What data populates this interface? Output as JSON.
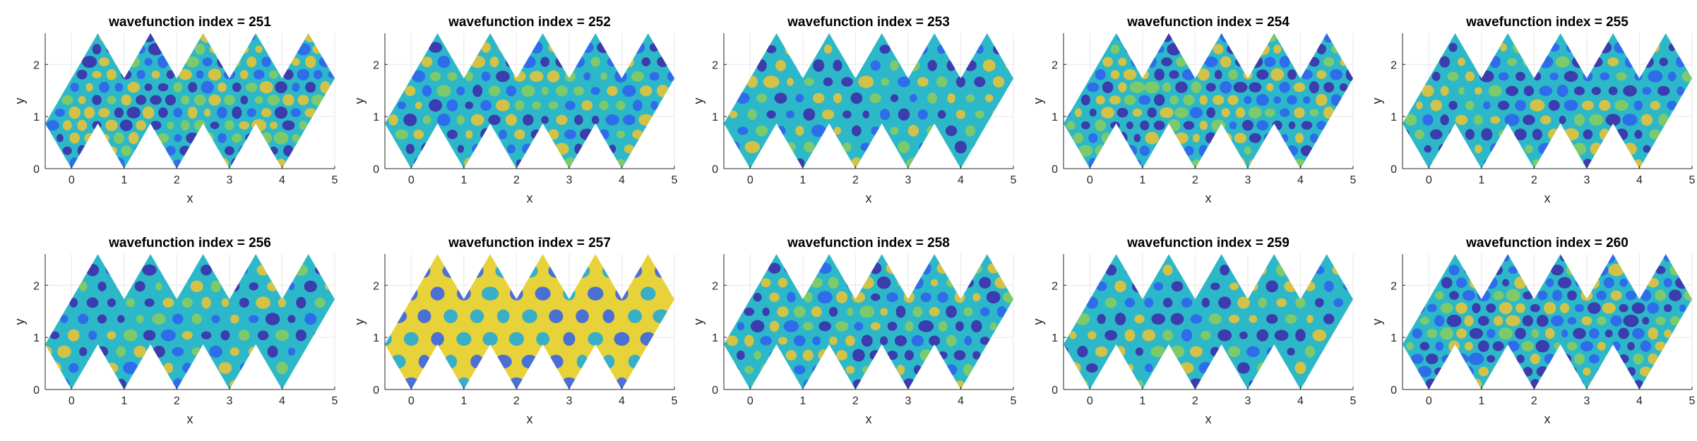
{
  "figure": {
    "layout": "2 rows x 5 columns",
    "colormap": [
      "#3e26a8",
      "#2f5ff0",
      "#1aa8e0",
      "#2bc0c0",
      "#8ccc5c",
      "#f0c330",
      "#f9f50f"
    ]
  },
  "chart_data": [
    {
      "type": "heatmap",
      "title": "wavefunction index = 251",
      "xlabel": "x",
      "ylabel": "y",
      "xlim": [
        -0.5,
        5
      ],
      "ylim": [
        0,
        2.6
      ],
      "xticks": [
        "0",
        "1",
        "2",
        "3",
        "4",
        "5"
      ],
      "yticks": [
        "0",
        "1",
        "2"
      ],
      "grid": true,
      "domain": "zigzag polygon",
      "pattern": "vertical-stripes"
    },
    {
      "type": "heatmap",
      "title": "wavefunction index = 252",
      "xlabel": "x",
      "ylabel": "y",
      "xlim": [
        -0.5,
        5
      ],
      "ylim": [
        0,
        2.6
      ],
      "xticks": [
        "0",
        "1",
        "2",
        "3",
        "4",
        "5"
      ],
      "yticks": [
        "0",
        "1",
        "2"
      ],
      "grid": true,
      "domain": "zigzag polygon",
      "pattern": "diagonal-waves"
    },
    {
      "type": "heatmap",
      "title": "wavefunction index = 253",
      "xlabel": "x",
      "ylabel": "y",
      "xlim": [
        -0.5,
        5
      ],
      "ylim": [
        0,
        2.6
      ],
      "xticks": [
        "0",
        "1",
        "2",
        "3",
        "4",
        "5"
      ],
      "yticks": [
        "0",
        "1",
        "2"
      ],
      "grid": true,
      "domain": "zigzag polygon",
      "pattern": "rotated-lattice"
    },
    {
      "type": "heatmap",
      "title": "wavefunction index = 254",
      "xlabel": "x",
      "ylabel": "y",
      "xlim": [
        -0.5,
        5
      ],
      "ylim": [
        0,
        2.6
      ],
      "xticks": [
        "0",
        "1",
        "2",
        "3",
        "4",
        "5"
      ],
      "yticks": [
        "0",
        "1",
        "2"
      ],
      "grid": true,
      "domain": "zigzag polygon",
      "pattern": "hex-lattice"
    },
    {
      "type": "heatmap",
      "title": "wavefunction index = 255",
      "xlabel": "x",
      "ylabel": "y",
      "xlim": [
        -0.5,
        5
      ],
      "ylim": [
        0,
        2.6
      ],
      "xticks": [
        "0",
        "1",
        "2",
        "3",
        "4",
        "5"
      ],
      "yticks": [
        "0",
        "1",
        "2"
      ],
      "grid": true,
      "domain": "zigzag polygon",
      "pattern": "checker-blobs"
    },
    {
      "type": "heatmap",
      "title": "wavefunction index = 256",
      "xlabel": "x",
      "ylabel": "y",
      "xlim": [
        -0.5,
        5
      ],
      "ylim": [
        0,
        2.6
      ],
      "xticks": [
        "0",
        "1",
        "2",
        "3",
        "4",
        "5"
      ],
      "yticks": [
        "0",
        "1",
        "2"
      ],
      "grid": true,
      "domain": "zigzag polygon",
      "pattern": "triangular-lattice"
    },
    {
      "type": "heatmap",
      "title": "wavefunction index = 257",
      "xlabel": "x",
      "ylabel": "y",
      "xlim": [
        -0.5,
        5
      ],
      "ylim": [
        0,
        2.6
      ],
      "xticks": [
        "0",
        "1",
        "2",
        "3",
        "4",
        "5"
      ],
      "yticks": [
        "0",
        "1",
        "2"
      ],
      "grid": true,
      "domain": "zigzag polygon",
      "pattern": "honeycomb-bright"
    },
    {
      "type": "heatmap",
      "title": "wavefunction index = 258",
      "xlabel": "x",
      "ylabel": "y",
      "xlim": [
        -0.5,
        5
      ],
      "ylim": [
        0,
        2.6
      ],
      "xticks": [
        "0",
        "1",
        "2",
        "3",
        "4",
        "5"
      ],
      "yticks": [
        "0",
        "1",
        "2"
      ],
      "grid": true,
      "domain": "zigzag polygon",
      "pattern": "dense-lattice"
    },
    {
      "type": "heatmap",
      "title": "wavefunction index = 259",
      "xlabel": "x",
      "ylabel": "y",
      "xlim": [
        -0.5,
        5
      ],
      "ylim": [
        0,
        2.6
      ],
      "xticks": [
        "0",
        "1",
        "2",
        "3",
        "4",
        "5"
      ],
      "yticks": [
        "0",
        "1",
        "2"
      ],
      "grid": true,
      "domain": "zigzag polygon",
      "pattern": "mixed-lattice"
    },
    {
      "type": "heatmap",
      "title": "wavefunction index = 260",
      "xlabel": "x",
      "ylabel": "y",
      "xlim": [
        -0.5,
        5
      ],
      "ylim": [
        0,
        2.6
      ],
      "xticks": [
        "0",
        "1",
        "2",
        "3",
        "4",
        "5"
      ],
      "yticks": [
        "0",
        "1",
        "2"
      ],
      "grid": true,
      "domain": "zigzag polygon",
      "pattern": "fine-lattice"
    }
  ]
}
